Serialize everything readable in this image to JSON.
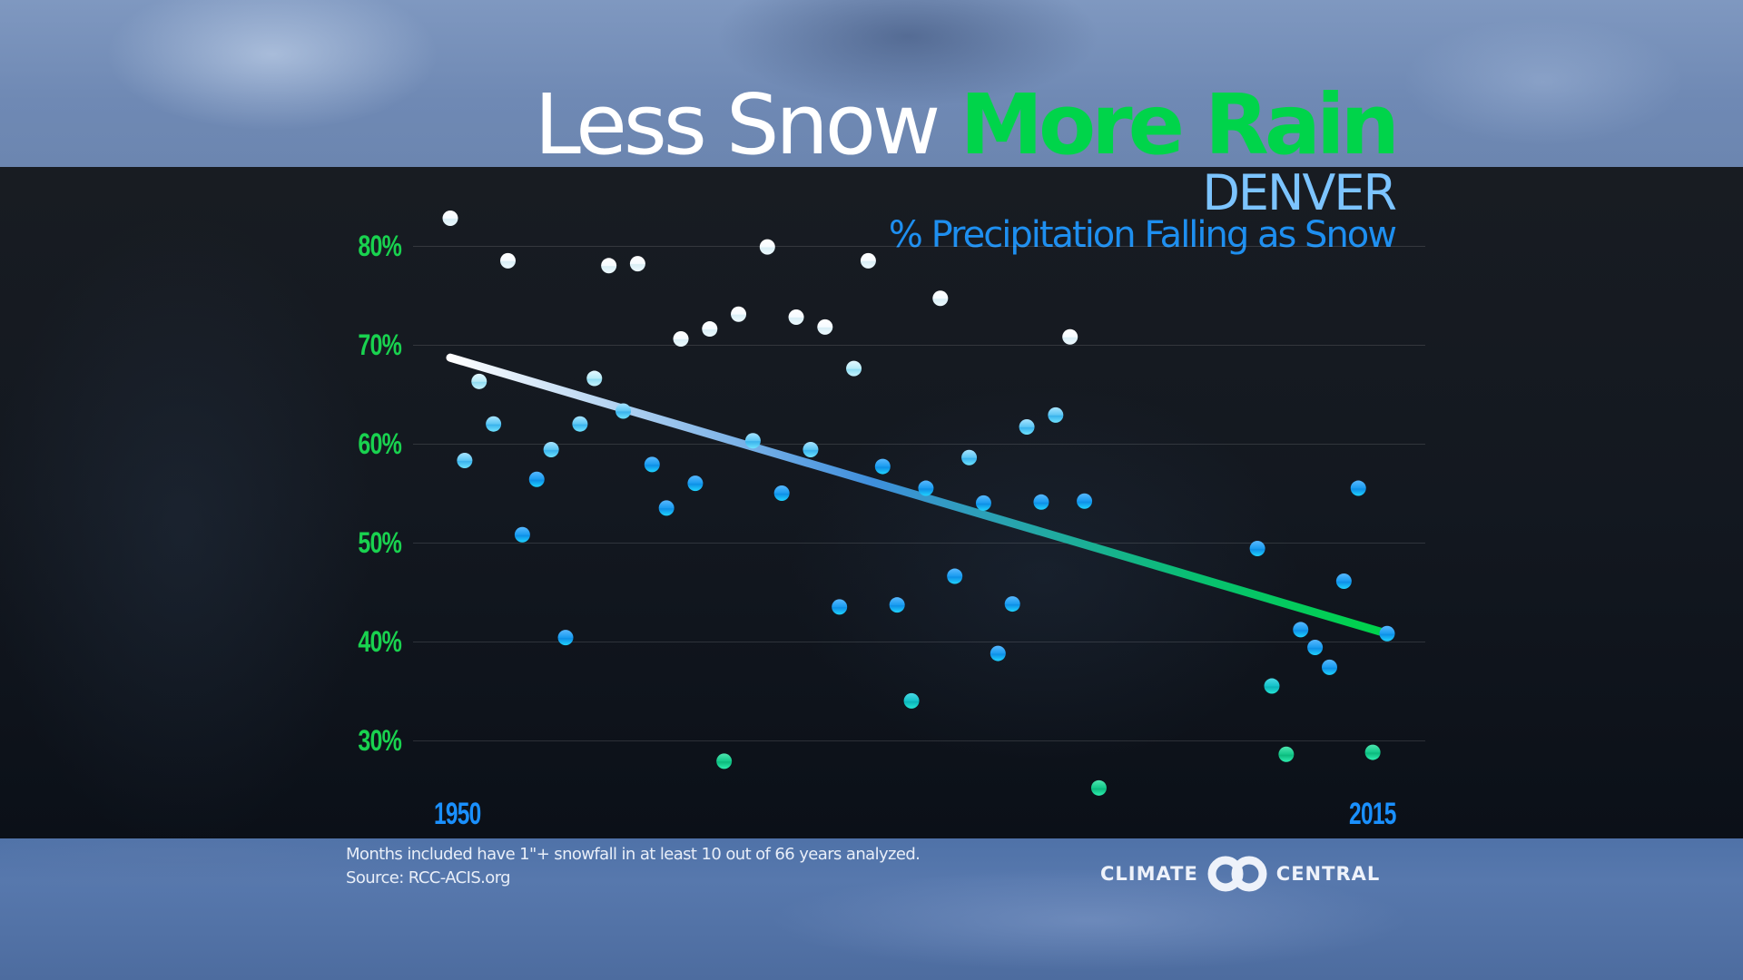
{
  "header": {
    "title_part1": "Less Snow",
    "title_part2": "More Rain",
    "city": "DENVER",
    "subtitle": "% Precipitation Falling as Snow"
  },
  "axes": {
    "y_ticks": [
      "80%",
      "70%",
      "60%",
      "50%",
      "40%",
      "30%"
    ],
    "x_start": "1950",
    "x_end": "2015"
  },
  "footer": {
    "note": "Months included have 1\"+ snowfall in at least 10 out of 66 years analyzed.",
    "source": "Source: RCC-ACIS.org"
  },
  "logo": {
    "left": "CLIMATE",
    "right": "CENTRAL"
  },
  "colors": {
    "title_accent": "#00d44a",
    "axis_label": "#19d24f",
    "city": "#7cc4ff",
    "subtitle": "#1e8ff0",
    "year_label": "#1a90ff",
    "trend_start": "#ffffff",
    "trend_mid": "#3f8fdc",
    "trend_end": "#00d44a"
  },
  "chart_data": {
    "type": "scatter",
    "title": "Less Snow More Rain",
    "subtitle": "DENVER — % Precipitation Falling as Snow",
    "xlabel": "",
    "ylabel": "% Precipitation Falling as Snow",
    "xlim": [
      1950,
      2015
    ],
    "ylim": [
      25,
      83
    ],
    "x_tick_labels": [
      "1950",
      "2015"
    ],
    "y_ticks": [
      80,
      70,
      60,
      50,
      40,
      30
    ],
    "grid": true,
    "legend": null,
    "points": [
      {
        "year": 1950,
        "value": 82.8
      },
      {
        "year": 1951,
        "value": 58.3
      },
      {
        "year": 1952,
        "value": 66.3
      },
      {
        "year": 1953,
        "value": 62.0
      },
      {
        "year": 1954,
        "value": 78.5
      },
      {
        "year": 1955,
        "value": 50.8
      },
      {
        "year": 1956,
        "value": 56.4
      },
      {
        "year": 1957,
        "value": 59.4
      },
      {
        "year": 1958,
        "value": 40.4
      },
      {
        "year": 1959,
        "value": 62.0
      },
      {
        "year": 1960,
        "value": 66.6
      },
      {
        "year": 1961,
        "value": 78.0
      },
      {
        "year": 1962,
        "value": 63.3
      },
      {
        "year": 1963,
        "value": 78.2
      },
      {
        "year": 1964,
        "value": 57.9
      },
      {
        "year": 1965,
        "value": 53.5
      },
      {
        "year": 1966,
        "value": 70.6
      },
      {
        "year": 1967,
        "value": 56.0
      },
      {
        "year": 1968,
        "value": 71.6
      },
      {
        "year": 1969,
        "value": 27.9
      },
      {
        "year": 1970,
        "value": 73.1
      },
      {
        "year": 1971,
        "value": 60.3
      },
      {
        "year": 1972,
        "value": 79.9
      },
      {
        "year": 1973,
        "value": 55.0
      },
      {
        "year": 1974,
        "value": 72.8
      },
      {
        "year": 1975,
        "value": 59.4
      },
      {
        "year": 1976,
        "value": 71.8
      },
      {
        "year": 1977,
        "value": 43.5
      },
      {
        "year": 1978,
        "value": 67.6
      },
      {
        "year": 1979,
        "value": 78.5
      },
      {
        "year": 1980,
        "value": 57.7
      },
      {
        "year": 1981,
        "value": 43.7
      },
      {
        "year": 1982,
        "value": 34.0
      },
      {
        "year": 1983,
        "value": 55.5
      },
      {
        "year": 1984,
        "value": 74.7
      },
      {
        "year": 1985,
        "value": 46.6
      },
      {
        "year": 1986,
        "value": 58.6
      },
      {
        "year": 1987,
        "value": 54.0
      },
      {
        "year": 1988,
        "value": 38.8
      },
      {
        "year": 1989,
        "value": 43.8
      },
      {
        "year": 1990,
        "value": 61.7
      },
      {
        "year": 1991,
        "value": 54.1
      },
      {
        "year": 1992,
        "value": 62.9
      },
      {
        "year": 1993,
        "value": 70.8
      },
      {
        "year": 1994,
        "value": 54.2
      },
      {
        "year": 1995,
        "value": 25.2
      },
      {
        "year": 2006,
        "value": 49.4
      },
      {
        "year": 2007,
        "value": 35.5
      },
      {
        "year": 2008,
        "value": 28.6
      },
      {
        "year": 2009,
        "value": 41.2
      },
      {
        "year": 2010,
        "value": 39.4
      },
      {
        "year": 2011,
        "value": 37.4
      },
      {
        "year": 2012,
        "value": 46.1
      },
      {
        "year": 2013,
        "value": 55.5
      },
      {
        "year": 2014,
        "value": 28.8
      },
      {
        "year": 2015,
        "value": 40.8
      }
    ],
    "trendline": {
      "x": [
        1950,
        2015
      ],
      "y": [
        68.7,
        40.8
      ]
    }
  }
}
